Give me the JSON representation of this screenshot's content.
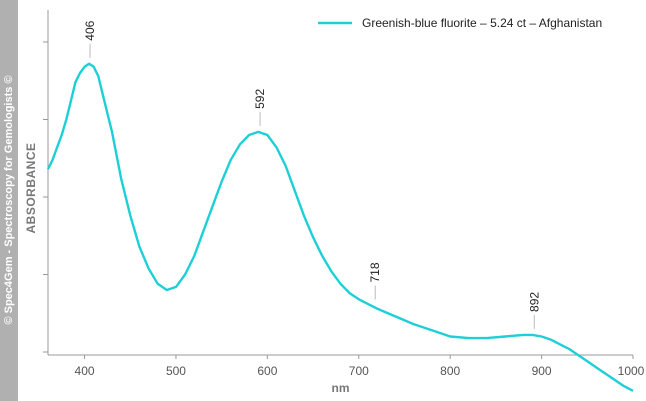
{
  "watermark": "© Spec4Gem - Spectroscopy for Gemologists ©",
  "chart_data": {
    "type": "line",
    "title": "",
    "xlabel": "nm",
    "ylabel": "ABSORBANCE",
    "xlim": [
      360,
      1000
    ],
    "ylim": [
      0,
      1
    ],
    "x_ticks": [
      400,
      500,
      600,
      700,
      800,
      900,
      1000
    ],
    "y_ticks": [
      0,
      0.25,
      0.5,
      0.75,
      1.0
    ],
    "y_tick_labels_visible": false,
    "grid": false,
    "legend_position": "top-right",
    "series": [
      {
        "name": "Greenish-blue fluorite – 5.24 ct – Afghanistan",
        "color": "#1ecfd6",
        "x": [
          360,
          365,
          370,
          375,
          380,
          385,
          390,
          395,
          400,
          405,
          410,
          415,
          420,
          430,
          440,
          450,
          460,
          470,
          480,
          490,
          500,
          510,
          520,
          530,
          540,
          550,
          560,
          570,
          580,
          590,
          600,
          610,
          620,
          630,
          640,
          650,
          660,
          670,
          680,
          690,
          700,
          710,
          720,
          740,
          760,
          780,
          800,
          820,
          840,
          860,
          880,
          890,
          900,
          910,
          920,
          930,
          940,
          950,
          960,
          970,
          980,
          990,
          1000
        ],
        "y": [
          0.59,
          0.62,
          0.66,
          0.7,
          0.75,
          0.81,
          0.87,
          0.9,
          0.92,
          0.93,
          0.92,
          0.89,
          0.83,
          0.71,
          0.56,
          0.44,
          0.34,
          0.27,
          0.22,
          0.2,
          0.21,
          0.25,
          0.31,
          0.39,
          0.47,
          0.55,
          0.62,
          0.67,
          0.7,
          0.71,
          0.7,
          0.66,
          0.6,
          0.52,
          0.44,
          0.37,
          0.31,
          0.26,
          0.22,
          0.19,
          0.17,
          0.155,
          0.14,
          0.115,
          0.09,
          0.07,
          0.05,
          0.045,
          0.045,
          0.05,
          0.055,
          0.055,
          0.05,
          0.04,
          0.025,
          0.01,
          -0.01,
          -0.03,
          -0.05,
          -0.07,
          -0.09,
          -0.11,
          -0.125
        ]
      }
    ],
    "annotations": [
      {
        "text": "406",
        "x": 406,
        "y": 0.93
      },
      {
        "text": "592",
        "x": 592,
        "y": 0.71
      },
      {
        "text": "718",
        "x": 718,
        "y": 0.15
      },
      {
        "text": "892",
        "x": 892,
        "y": 0.055
      }
    ]
  }
}
